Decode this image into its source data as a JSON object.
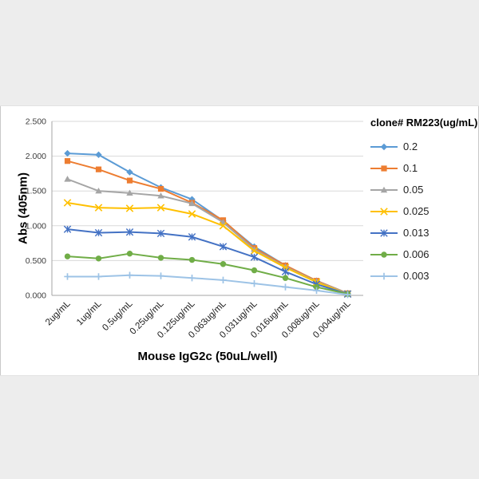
{
  "chart_data": {
    "type": "line",
    "title": "",
    "xlabel": "Mouse IgG2c (50uL/well)",
    "ylabel": "Abs (405nm)",
    "legend_title": "clone# RM223(ug/mL)",
    "legend_position": "right",
    "grid": true,
    "ylim": [
      0,
      2.5
    ],
    "y_ticks": [
      0,
      0.5,
      1.0,
      1.5,
      2.0,
      2.5
    ],
    "y_tick_labels": [
      "0.000",
      "0.500",
      "1.000",
      "1.500",
      "2.000",
      "2.500"
    ],
    "categories": [
      "2ug/mL",
      "1ug/mL",
      "0.5ug/mL",
      "0.25ug/mL",
      "0.125ug/mL",
      "0.063ug/mL",
      "0.031ug/mL",
      "0.016ug/mL",
      "0.008ug/mL",
      "0.004ug/mL"
    ],
    "series": [
      {
        "name": "0.2",
        "marker": "diamond",
        "color": "#5B9BD5",
        "values": [
          2.04,
          2.02,
          1.77,
          1.55,
          1.38,
          1.07,
          0.7,
          0.43,
          0.21,
          0.03
        ]
      },
      {
        "name": "0.1",
        "marker": "square",
        "color": "#ED7D31",
        "values": [
          1.93,
          1.81,
          1.65,
          1.53,
          1.33,
          1.08,
          0.68,
          0.43,
          0.21,
          0.03
        ]
      },
      {
        "name": "0.05",
        "marker": "triangle",
        "color": "#A5A5A5",
        "values": [
          1.67,
          1.5,
          1.47,
          1.43,
          1.32,
          1.05,
          0.66,
          0.41,
          0.2,
          0.03
        ]
      },
      {
        "name": "0.025",
        "marker": "x",
        "color": "#FFC000",
        "values": [
          1.33,
          1.26,
          1.25,
          1.26,
          1.17,
          1.0,
          0.64,
          0.4,
          0.19,
          0.02
        ]
      },
      {
        "name": "0.013",
        "marker": "asterisk",
        "color": "#4472C4",
        "values": [
          0.95,
          0.9,
          0.91,
          0.89,
          0.84,
          0.7,
          0.55,
          0.34,
          0.16,
          0.02
        ]
      },
      {
        "name": "0.006",
        "marker": "circle",
        "color": "#70AD47",
        "values": [
          0.56,
          0.53,
          0.6,
          0.54,
          0.51,
          0.45,
          0.36,
          0.25,
          0.12,
          0.02
        ]
      },
      {
        "name": "0.003",
        "marker": "plus",
        "color": "#9DC3E6",
        "values": [
          0.27,
          0.27,
          0.29,
          0.28,
          0.25,
          0.22,
          0.17,
          0.12,
          0.07,
          0.01
        ]
      }
    ]
  }
}
